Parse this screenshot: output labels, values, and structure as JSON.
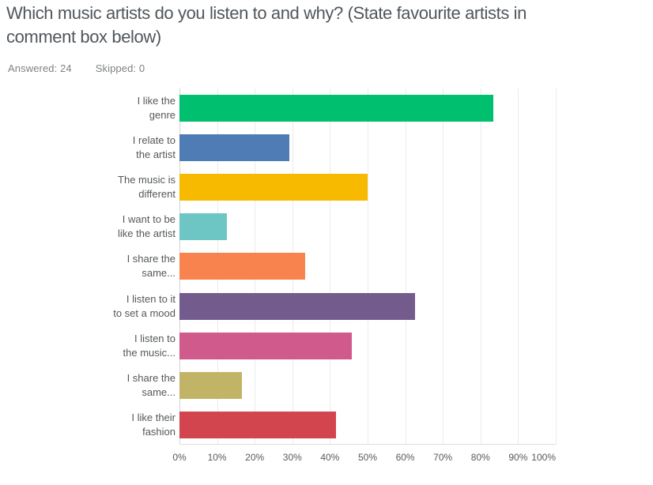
{
  "page": {
    "title": "Which music artists do you listen to and why? (State favourite artists in comment box below)",
    "title_lines": [
      "Which music artists do you listen to and why? (State favourite artists in",
      "comment box below)"
    ],
    "answered_label": "Answered:",
    "answered_value": "24",
    "skipped_label": "Skipped:",
    "skipped_value": "0"
  },
  "colors": {
    "title_text": "#50565c",
    "meta_text": "#7d8184",
    "label_text": "#54585a",
    "gridline": "#eaebeb",
    "zero_line": "#d2d5d6",
    "axis_line": "#dadddd",
    "background": "#ffffff"
  },
  "chart_data": {
    "type": "bar",
    "orientation": "horizontal",
    "title": "Which music artists do you listen to and why? (State favourite artists in comment box below)",
    "xlabel": "",
    "ylabel": "",
    "xlim": [
      0,
      100
    ],
    "grid": true,
    "legend": false,
    "answered_total": 24,
    "x_ticks": [
      "0%",
      "10%",
      "20%",
      "30%",
      "40%",
      "50%",
      "60%",
      "70%",
      "80%",
      "90%",
      "100%"
    ],
    "categories": [
      "I like the genre",
      "I relate to the artist",
      "The music is different",
      "I want to be like the artist",
      "I share the same...",
      "I listen to it to set a mood",
      "I listen to the music...",
      "I share the same...",
      "I like their fashion"
    ],
    "category_display_lines": [
      [
        "I like the",
        "genre"
      ],
      [
        "I relate to",
        "the artist"
      ],
      [
        "The music is",
        "different"
      ],
      [
        "I want to be",
        "like the artist"
      ],
      [
        "I share the",
        "same..."
      ],
      [
        "I listen to it",
        "to set a mood"
      ],
      [
        "I listen to",
        "the music..."
      ],
      [
        "I share the",
        "same..."
      ],
      [
        "I like their",
        "fashion"
      ]
    ],
    "values": [
      83.33,
      29.17,
      50,
      12.5,
      33.33,
      62.5,
      45.83,
      16.67,
      41.67
    ],
    "bar_colors": [
      "#00BF6F",
      "#507CB6",
      "#F8BA00",
      "#6EC6C4",
      "#F9834F",
      "#745B8E",
      "#D05A8C",
      "#C2B466",
      "#D2444E"
    ]
  }
}
